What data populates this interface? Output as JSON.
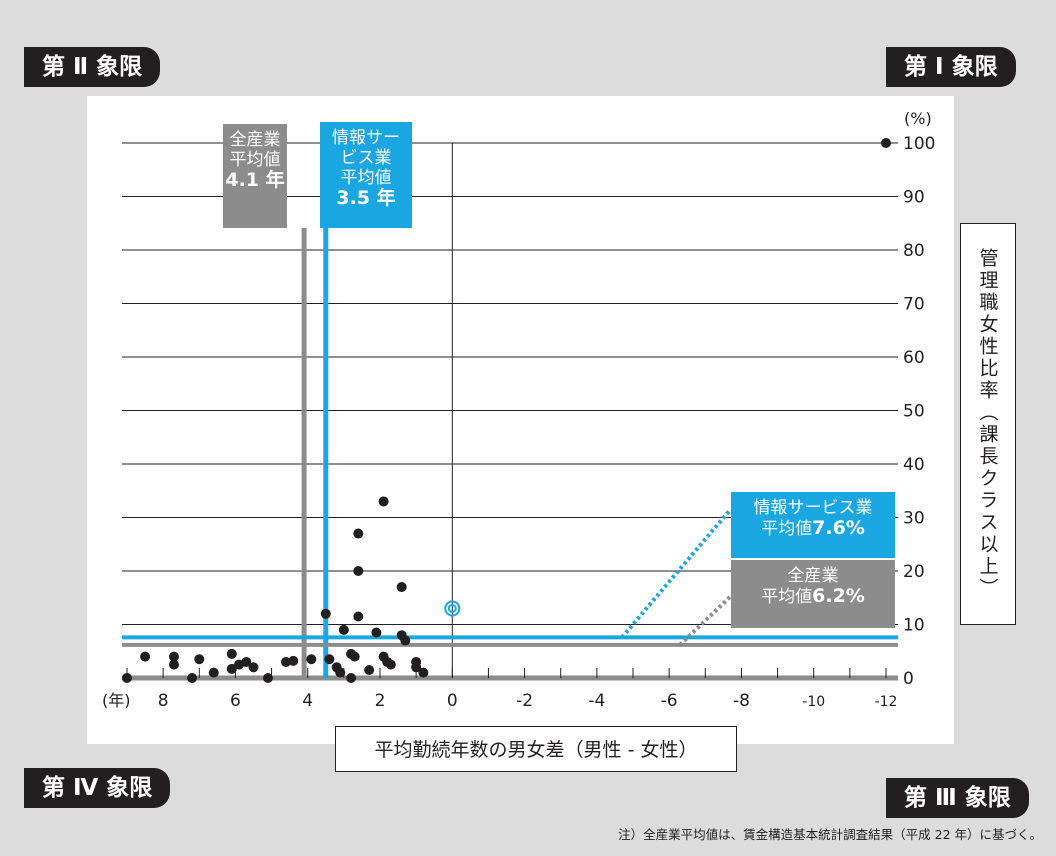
{
  "quadrants": {
    "q2": "第 Ⅱ 象限",
    "q1": "第 Ⅰ 象限",
    "q4": "第 Ⅳ 象限",
    "q3": "第 Ⅲ 象限"
  },
  "labels": {
    "xlabel": "平均勤続年数の男女差（男性 - 女性）",
    "ylabel": "管理職女性比率（課長クラス以上）",
    "y_unit": "(%)",
    "x_unit": "(年)",
    "note": "注）全産業平均値は、賃金構造基本統計調査結果（平成 22 年）に基づく。",
    "all_x_line1": "全産業",
    "all_x_line2": "平均値",
    "all_x_value": "4.1 年",
    "info_x_line1": "情報サー",
    "info_x_line2": "ビス業",
    "info_x_line3": "平均値",
    "info_x_value": "3.5 年",
    "info_y_line1": "情報サービス業",
    "info_y_line2": "平均値",
    "info_y_value": "7.6%",
    "all_y_line1": "全産業",
    "all_y_line2": "平均値",
    "all_y_value": "6.2%"
  },
  "colors": {
    "info": "#1aa6e0",
    "all": "#8c8c8c",
    "dot": "#231f20"
  },
  "chart_data": {
    "type": "scatter",
    "x_axis": {
      "range": [
        9,
        -12
      ],
      "reversed": true,
      "ticks": [
        "8",
        "6",
        "4",
        "2",
        "0",
        "-2",
        "-4",
        "-6",
        "-8",
        "-10",
        "-12"
      ],
      "tick_values": [
        8,
        6,
        4,
        2,
        0,
        -2,
        -4,
        -6,
        -8,
        -10,
        -12
      ]
    },
    "y_axis": {
      "range": [
        0,
        100
      ],
      "ticks": [
        "0",
        "10",
        "20",
        "30",
        "40",
        "50",
        "60",
        "70",
        "80",
        "90",
        "100"
      ],
      "tick_values": [
        0,
        10,
        20,
        30,
        40,
        50,
        60,
        70,
        80,
        90,
        100
      ],
      "side": "right",
      "grid": true
    },
    "reference_lines": {
      "all_industry_x": 4.1,
      "info_service_x": 3.5,
      "info_service_y": 7.6,
      "all_industry_y": 6.2
    },
    "points": [
      {
        "x": 9.0,
        "y": 0.0
      },
      {
        "x": 8.5,
        "y": 4.0
      },
      {
        "x": 7.7,
        "y": 4.0
      },
      {
        "x": 7.7,
        "y": 2.5
      },
      {
        "x": 7.2,
        "y": 0.0
      },
      {
        "x": 7.0,
        "y": 3.5
      },
      {
        "x": 6.6,
        "y": 1.0
      },
      {
        "x": 6.1,
        "y": 4.5
      },
      {
        "x": 6.1,
        "y": 1.7
      },
      {
        "x": 5.9,
        "y": 2.5
      },
      {
        "x": 5.7,
        "y": 3.0
      },
      {
        "x": 5.5,
        "y": 2.0
      },
      {
        "x": 5.1,
        "y": 0.0
      },
      {
        "x": 4.6,
        "y": 3.0
      },
      {
        "x": 4.4,
        "y": 3.2
      },
      {
        "x": 3.9,
        "y": 3.5
      },
      {
        "x": 3.5,
        "y": 12.0
      },
      {
        "x": 3.4,
        "y": 3.5
      },
      {
        "x": 3.2,
        "y": 2.0
      },
      {
        "x": 3.1,
        "y": 1.0
      },
      {
        "x": 3.0,
        "y": 9.0
      },
      {
        "x": 2.8,
        "y": 4.5
      },
      {
        "x": 2.7,
        "y": 4.0
      },
      {
        "x": 2.8,
        "y": 0.0
      },
      {
        "x": 2.6,
        "y": 27.0
      },
      {
        "x": 2.6,
        "y": 20.0
      },
      {
        "x": 2.6,
        "y": 11.5
      },
      {
        "x": 2.3,
        "y": 1.5
      },
      {
        "x": 2.1,
        "y": 8.5
      },
      {
        "x": 1.9,
        "y": 33.0
      },
      {
        "x": 1.9,
        "y": 4.0
      },
      {
        "x": 1.8,
        "y": 3.0
      },
      {
        "x": 1.7,
        "y": 2.5
      },
      {
        "x": 1.4,
        "y": 17.0
      },
      {
        "x": 1.4,
        "y": 8.0
      },
      {
        "x": 1.3,
        "y": 7.0
      },
      {
        "x": 1.0,
        "y": 3.0
      },
      {
        "x": 1.0,
        "y": 2.0
      },
      {
        "x": 0.8,
        "y": 1.0
      },
      {
        "x": -12.0,
        "y": 100.0
      }
    ],
    "highlight_point": {
      "x": 0.0,
      "y": 13.0
    }
  }
}
